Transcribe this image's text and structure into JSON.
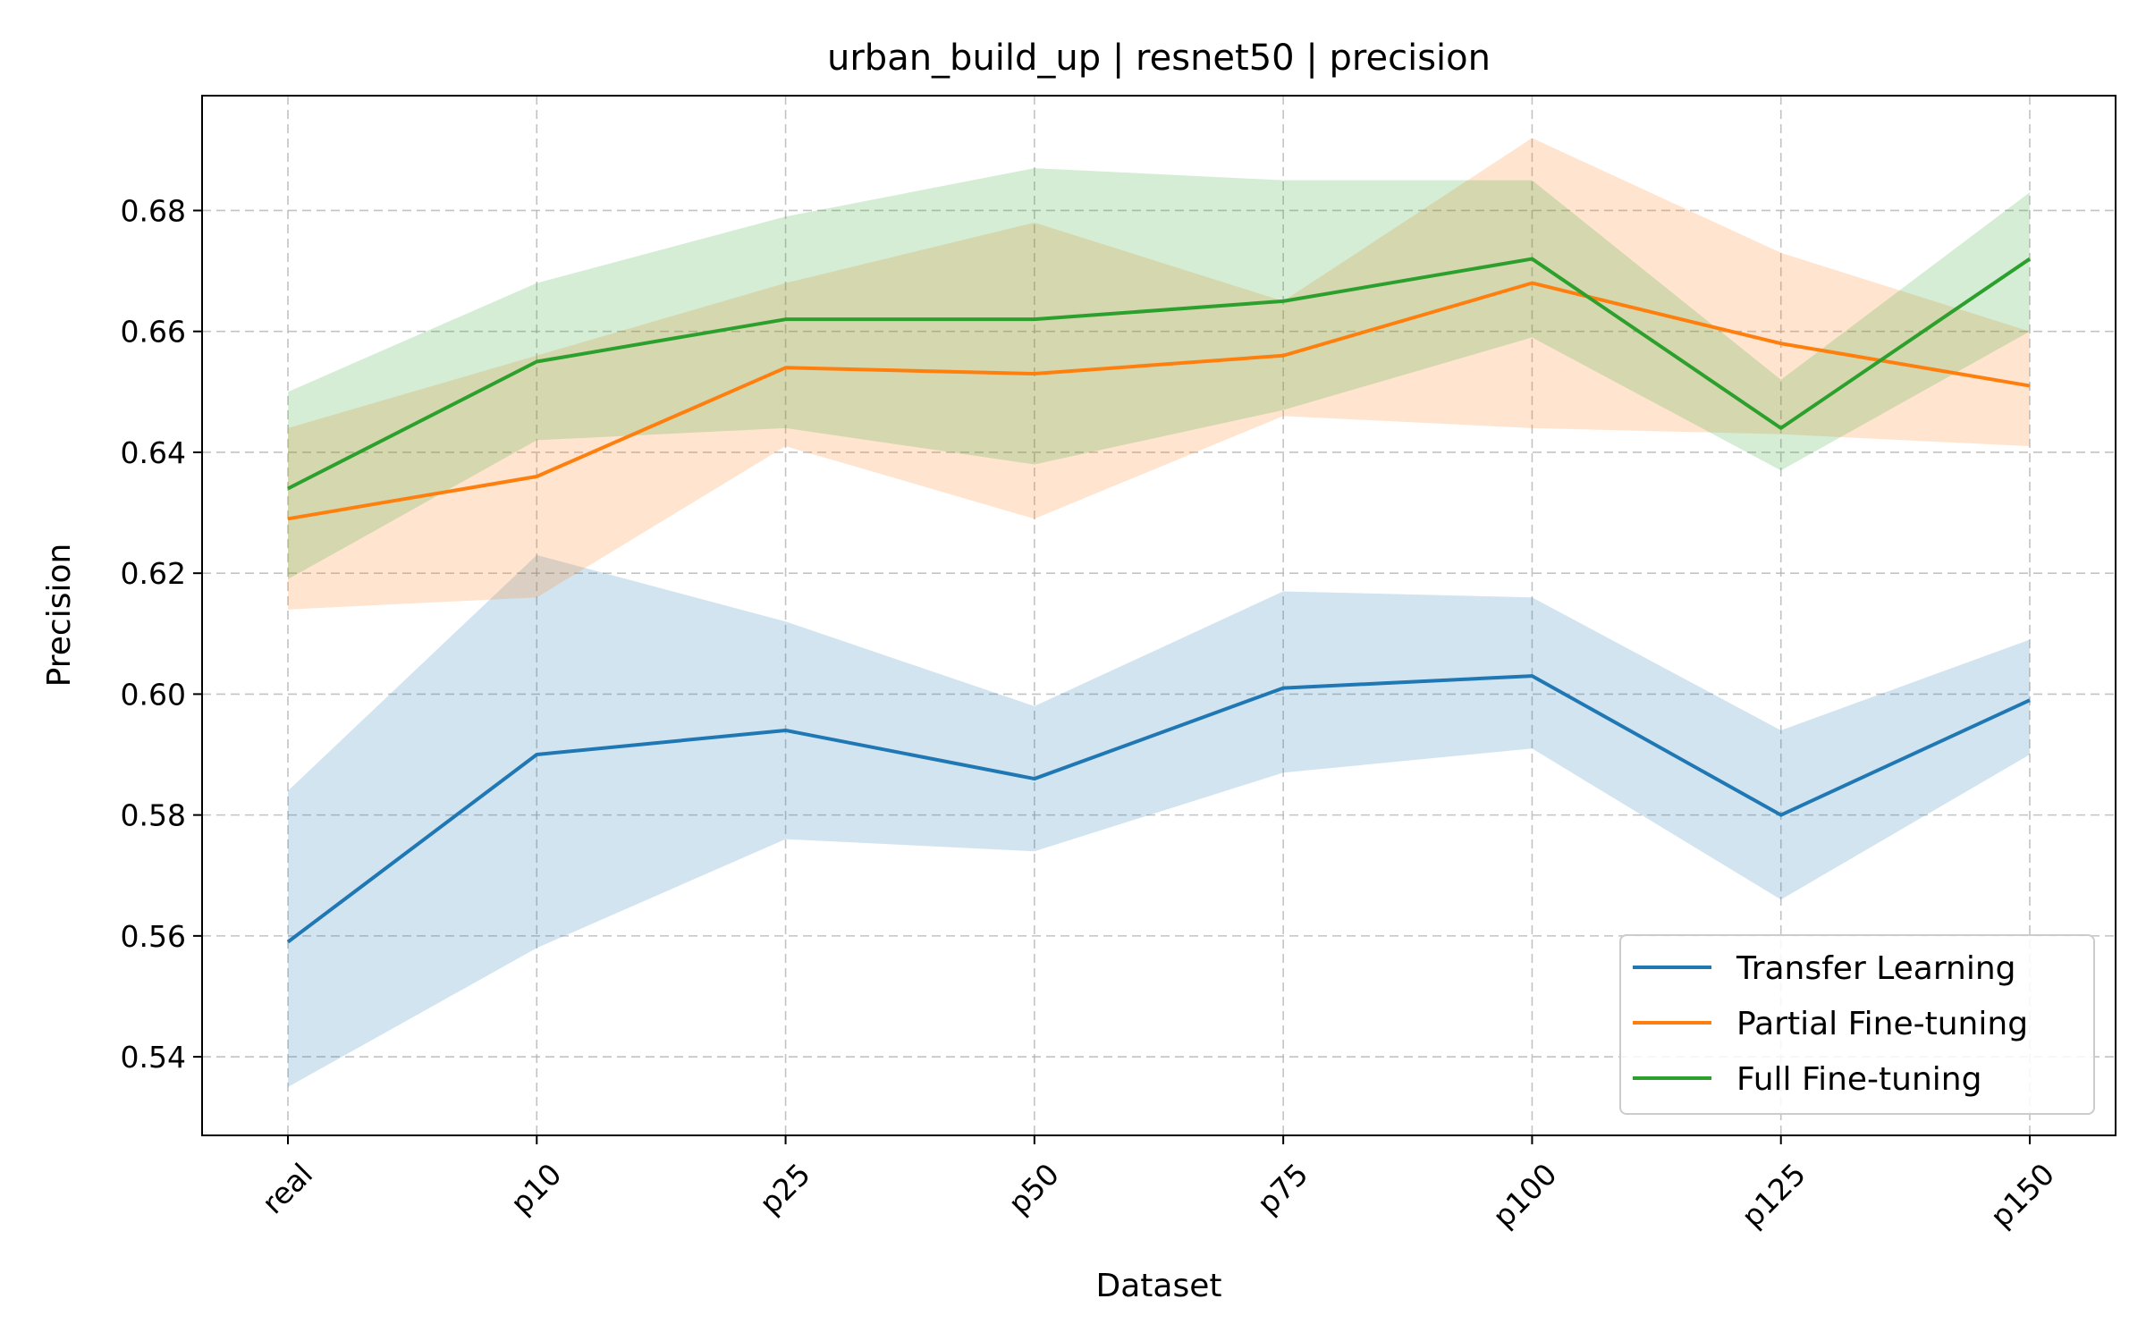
{
  "chart_data": {
    "type": "line",
    "title": "urban_build_up | resnet50 | precision",
    "xlabel": "Dataset",
    "ylabel": "Precision",
    "categories": [
      "real",
      "p10",
      "p25",
      "p50",
      "p75",
      "p100",
      "p125",
      "p150"
    ],
    "ylim": [
      0.527,
      0.699
    ],
    "yticks": [
      0.54,
      0.56,
      0.58,
      0.6,
      0.62,
      0.64,
      0.66,
      0.68
    ],
    "ytick_labels": [
      "0.54",
      "0.56",
      "0.58",
      "0.60",
      "0.62",
      "0.64",
      "0.66",
      "0.68"
    ],
    "grid": true,
    "legend_position": "lower-right",
    "series": [
      {
        "name": "Transfer Learning",
        "color": "#1f77b4",
        "values": [
          0.559,
          0.59,
          0.594,
          0.586,
          0.601,
          0.603,
          0.58,
          0.599
        ],
        "lower": [
          0.535,
          0.558,
          0.576,
          0.574,
          0.587,
          0.591,
          0.566,
          0.59
        ],
        "upper": [
          0.584,
          0.623,
          0.612,
          0.598,
          0.617,
          0.616,
          0.594,
          0.609
        ]
      },
      {
        "name": "Partial Fine-tuning",
        "color": "#ff7f0e",
        "values": [
          0.629,
          0.636,
          0.654,
          0.653,
          0.656,
          0.668,
          0.658,
          0.651
        ],
        "lower": [
          0.614,
          0.616,
          0.641,
          0.629,
          0.646,
          0.644,
          0.643,
          0.641
        ],
        "upper": [
          0.644,
          0.656,
          0.668,
          0.678,
          0.665,
          0.692,
          0.673,
          0.66
        ]
      },
      {
        "name": "Full Fine-tuning",
        "color": "#2ca02c",
        "values": [
          0.634,
          0.655,
          0.662,
          0.662,
          0.665,
          0.672,
          0.644,
          0.672
        ],
        "lower": [
          0.619,
          0.642,
          0.644,
          0.638,
          0.647,
          0.659,
          0.637,
          0.66
        ],
        "upper": [
          0.65,
          0.668,
          0.679,
          0.687,
          0.685,
          0.685,
          0.652,
          0.683
        ]
      }
    ]
  }
}
